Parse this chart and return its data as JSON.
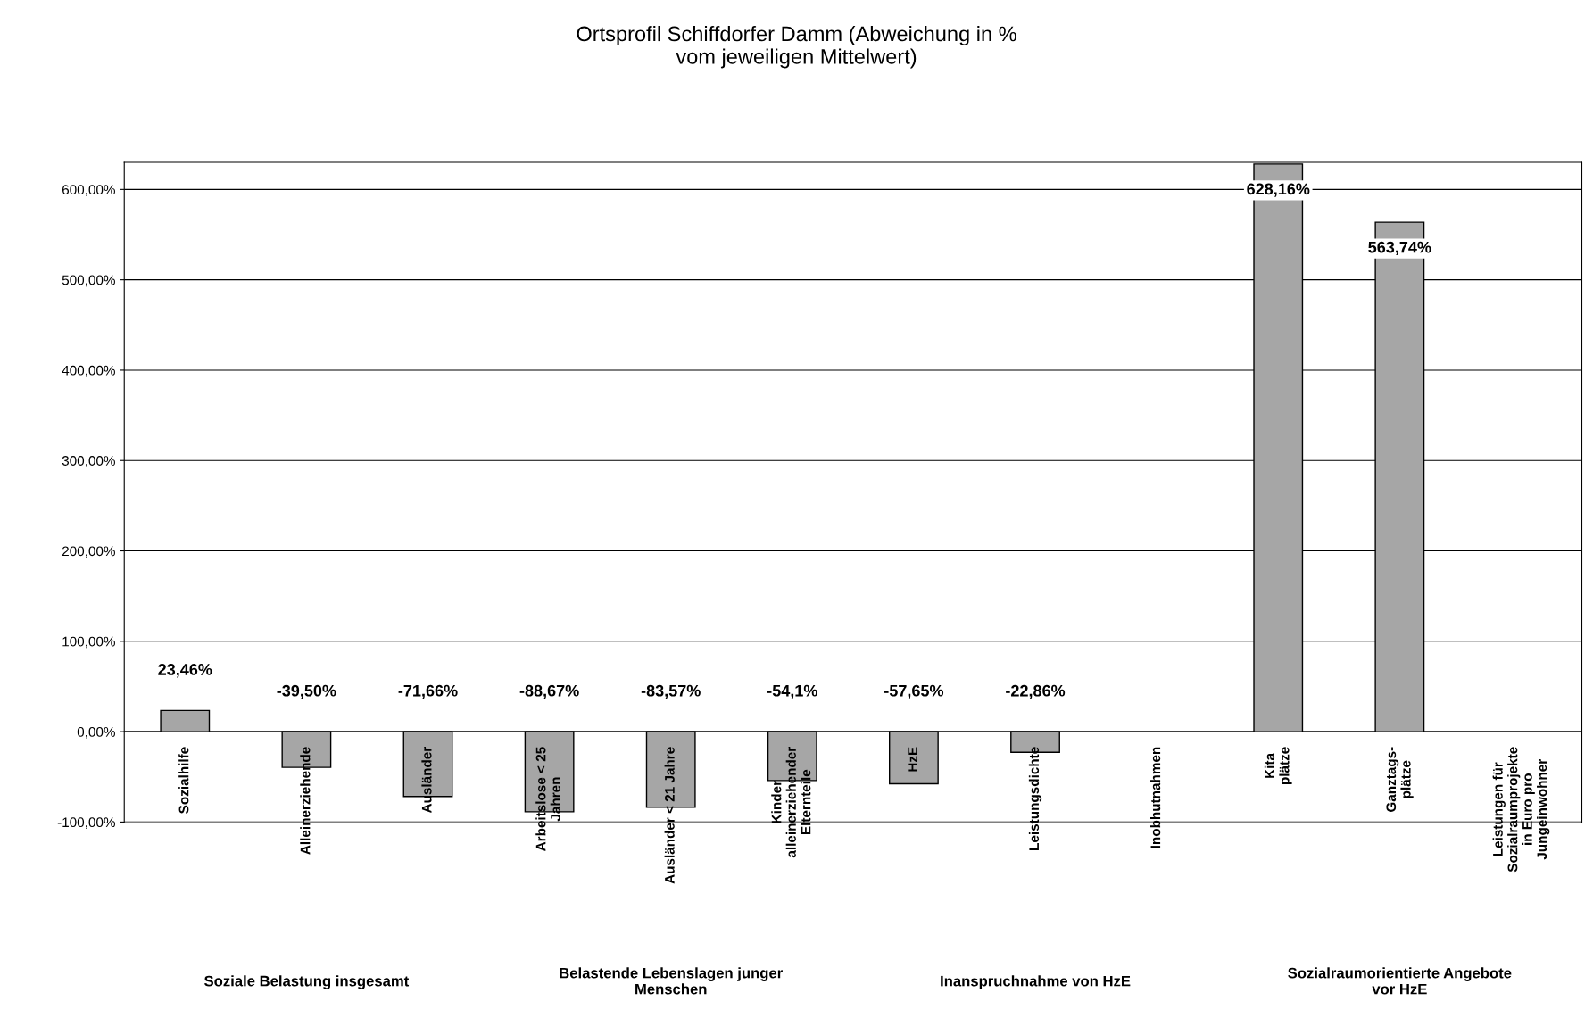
{
  "chart_data": {
    "type": "bar",
    "title": "Ortsprofil Schiffdorfer Damm (Abweichung in %\nvom jeweiligen Mittelwert)",
    "categories": [
      "Sozialhilfe",
      "Alleinerziehende",
      "Ausländer",
      "Arbeitslose < 25\nJahren",
      "Ausländer < 21 Jahre",
      "Kinder\nalleinerziehender\nElternteile",
      "HzE",
      "Leistungsdichte",
      "Inobhutnahmen",
      "Kita\nplätze",
      "Ganztags-\nplätze",
      "Leistungen für\nSozialraumprojekte\nin Euro pro\nJungeinwohner"
    ],
    "values": [
      23.46,
      -39.5,
      -71.66,
      -88.67,
      -83.57,
      -54.1,
      -57.65,
      -22.86,
      null,
      628.16,
      563.74,
      null
    ],
    "value_labels": [
      "23,46%",
      "-39,50%",
      "-71,66%",
      "-88,67%",
      "-83,57%",
      "-54,1%",
      "-57,65%",
      "-22,86%",
      null,
      "628,16%",
      "563,74%",
      null
    ],
    "color": "#a6a6a6",
    "ylim": [
      -100,
      630
    ],
    "yticks": [
      {
        "value": -100,
        "label": "-100,00%"
      },
      {
        "value": 0,
        "label": "0,00%"
      },
      {
        "value": 100,
        "label": "100,00%"
      },
      {
        "value": 200,
        "label": "200,00%"
      },
      {
        "value": 300,
        "label": "300,00%"
      },
      {
        "value": 400,
        "label": "400,00%"
      },
      {
        "value": 500,
        "label": "500,00%"
      },
      {
        "value": 600,
        "label": "600,00%"
      }
    ],
    "grid": "y",
    "annotations": [
      "Soziale Belastung insgesamt",
      "Belastende Lebenslagen junger\nMenschen",
      "Inanspruchnahme von HzE",
      "Sozialraumorientierte Angebote\nvor HzE"
    ]
  }
}
